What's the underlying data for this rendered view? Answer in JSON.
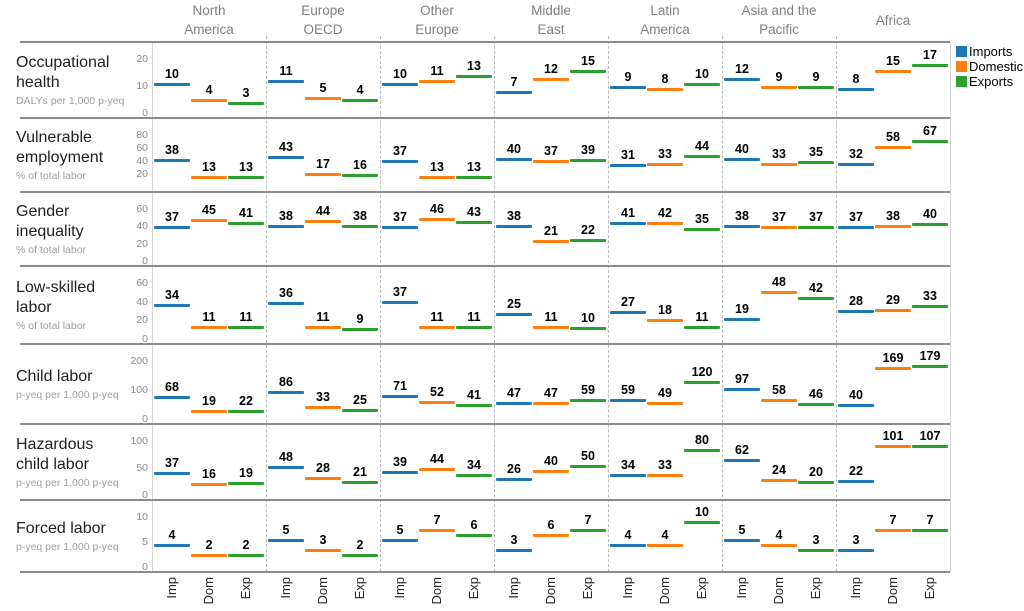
{
  "legend": {
    "items": [
      {
        "label": "Imports",
        "color": "#1f77b4"
      },
      {
        "label": "Domestic",
        "color": "#ff7f0e"
      },
      {
        "label": "Exports",
        "color": "#2ca02c"
      }
    ]
  },
  "chart_data": {
    "type": "scatter",
    "marker_style": "horizontal-dash",
    "legend_position": "top-right",
    "grid": false,
    "regions": [
      "North America",
      "Europe OECD",
      "Other Europe",
      "Middle East",
      "Latin America",
      "Asia and the Pacific",
      "Africa"
    ],
    "region_header_lines": [
      [
        "North",
        "America"
      ],
      [
        "Europe",
        "OECD"
      ],
      [
        "Other",
        "Europe"
      ],
      [
        "Middle",
        "East"
      ],
      [
        "Latin",
        "America"
      ],
      [
        "Asia and the",
        "Pacific"
      ],
      [
        "Africa"
      ]
    ],
    "x_categories": [
      "Imp",
      "Dom",
      "Exp"
    ],
    "series": [
      "Imports",
      "Domestic",
      "Exports"
    ],
    "series_colors": [
      "#1f77b4",
      "#ff7f0e",
      "#2ca02c"
    ],
    "indicators": [
      {
        "title": "Occupational health",
        "unit": "DALYs per 1,000 p-yeq",
        "ylim": [
          0,
          20
        ],
        "yticks": [
          20,
          10,
          0
        ],
        "values": [
          [
            10,
            4,
            3
          ],
          [
            11,
            5,
            4
          ],
          [
            10,
            11,
            13
          ],
          [
            7,
            12,
            15
          ],
          [
            9,
            8,
            10
          ],
          [
            12,
            9,
            9
          ],
          [
            8,
            15,
            17
          ]
        ]
      },
      {
        "title": "Vulnerable employment",
        "unit": "% of total labor",
        "ylim": [
          0,
          80
        ],
        "yticks": [
          80,
          60,
          40,
          20
        ],
        "values": [
          [
            38,
            13,
            13
          ],
          [
            43,
            17,
            16
          ],
          [
            37,
            13,
            13
          ],
          [
            40,
            37,
            39
          ],
          [
            31,
            33,
            44
          ],
          [
            40,
            33,
            35
          ],
          [
            32,
            58,
            67
          ]
        ]
      },
      {
        "title": "Gender inequality",
        "unit": "% of total labor",
        "ylim": [
          0,
          60
        ],
        "yticks": [
          60,
          40,
          20,
          0
        ],
        "values": [
          [
            37,
            45,
            41
          ],
          [
            38,
            44,
            38
          ],
          [
            37,
            46,
            43
          ],
          [
            38,
            21,
            22
          ],
          [
            41,
            42,
            35
          ],
          [
            38,
            37,
            37
          ],
          [
            37,
            38,
            40
          ]
        ]
      },
      {
        "title": "Low-skilled labor",
        "unit": "% of total labor",
        "ylim": [
          0,
          60
        ],
        "yticks": [
          60,
          40,
          20,
          0
        ],
        "values": [
          [
            34,
            11,
            11
          ],
          [
            36,
            11,
            9
          ],
          [
            37,
            11,
            11
          ],
          [
            25,
            11,
            10
          ],
          [
            27,
            18,
            11
          ],
          [
            19,
            48,
            42
          ],
          [
            28,
            29,
            33
          ]
        ]
      },
      {
        "title": "Child labor",
        "unit": "p-yeq per 1,000 p-yeq",
        "ylim": [
          0,
          200
        ],
        "yticks": [
          200,
          100,
          0
        ],
        "values": [
          [
            68,
            19,
            22
          ],
          [
            86,
            33,
            25
          ],
          [
            71,
            52,
            41
          ],
          [
            47,
            47,
            59
          ],
          [
            59,
            49,
            120
          ],
          [
            97,
            58,
            46
          ],
          [
            40,
            169,
            179
          ]
        ]
      },
      {
        "title": "Hazardous child labor",
        "unit": "p-yeq per 1,000 p-yeq",
        "ylim": [
          0,
          100
        ],
        "yticks": [
          100,
          50,
          0
        ],
        "values": [
          [
            37,
            16,
            19
          ],
          [
            48,
            28,
            21
          ],
          [
            39,
            44,
            34
          ],
          [
            26,
            40,
            50
          ],
          [
            34,
            33,
            80
          ],
          [
            62,
            24,
            20
          ],
          [
            22,
            101,
            107
          ]
        ]
      },
      {
        "title": "Forced labor",
        "unit": "p-yeq per 1,000 p-yeq",
        "ylim": [
          0,
          10
        ],
        "yticks": [
          10,
          5,
          0
        ],
        "values": [
          [
            4,
            2,
            2
          ],
          [
            5,
            3,
            2
          ],
          [
            5,
            7,
            6
          ],
          [
            3,
            6,
            7
          ],
          [
            4,
            4,
            10
          ],
          [
            5,
            4,
            3
          ],
          [
            3,
            7,
            7
          ]
        ]
      }
    ]
  }
}
